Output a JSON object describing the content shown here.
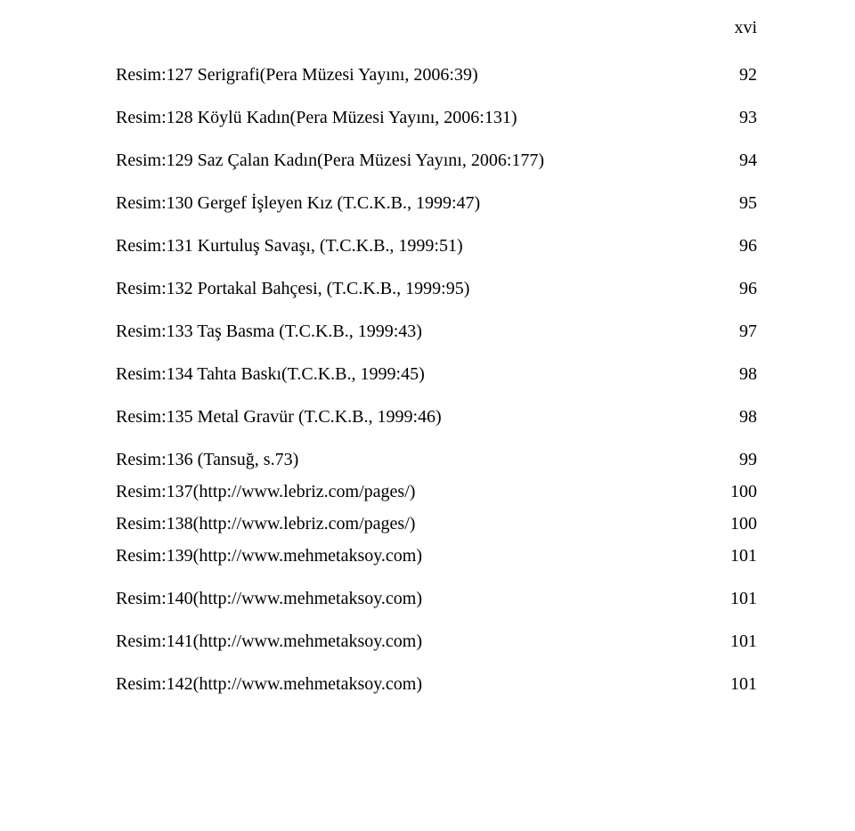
{
  "page_number_label": "xvi",
  "entries": [
    {
      "label": "Resim:127 Serigrafi(Pera Müzesi Yayını, 2006:39)",
      "page": "92",
      "tight": false
    },
    {
      "label": "Resim:128 Köylü Kadın(Pera Müzesi Yayını, 2006:131)",
      "page": "93",
      "tight": false
    },
    {
      "label": "Resim:129 Saz Çalan Kadın(Pera Müzesi Yayını, 2006:177)",
      "page": "94",
      "tight": false
    },
    {
      "label": "Resim:130 Gergef İşleyen Kız (T.C.K.B., 1999:47)",
      "page": "95",
      "tight": false
    },
    {
      "label": "Resim:131 Kurtuluş Savaşı, (T.C.K.B., 1999:51)",
      "page": "96",
      "tight": false
    },
    {
      "label": "Resim:132 Portakal Bahçesi, (T.C.K.B., 1999:95)",
      "page": "96",
      "tight": false
    },
    {
      "label": "Resim:133 Taş Basma (T.C.K.B., 1999:43)",
      "page": "97",
      "tight": false
    },
    {
      "label": "Resim:134 Tahta Baskı(T.C.K.B., 1999:45)",
      "page": "98",
      "tight": false
    },
    {
      "label": "Resim:135 Metal Gravür (T.C.K.B., 1999:46)",
      "page": "98",
      "tight": false
    },
    {
      "label": "Resim:136 (Tansuğ, s.73)",
      "page": "99",
      "tight": true
    },
    {
      "label": "Resim:137(http://www.lebriz.com/pages/)",
      "page": "100",
      "tight": true
    },
    {
      "label": "Resim:138(http://www.lebriz.com/pages/)",
      "page": "100",
      "tight": true
    },
    {
      "label": "Resim:139(http://www.mehmetaksoy.com)",
      "page": "101",
      "tight": false
    },
    {
      "label": "Resim:140(http://www.mehmetaksoy.com)",
      "page": "101",
      "tight": false
    },
    {
      "label": "Resim:141(http://www.mehmetaksoy.com)",
      "page": "101",
      "tight": false
    },
    {
      "label": "Resim:142(http://www.mehmetaksoy.com)",
      "page": "101",
      "tight": false
    }
  ]
}
